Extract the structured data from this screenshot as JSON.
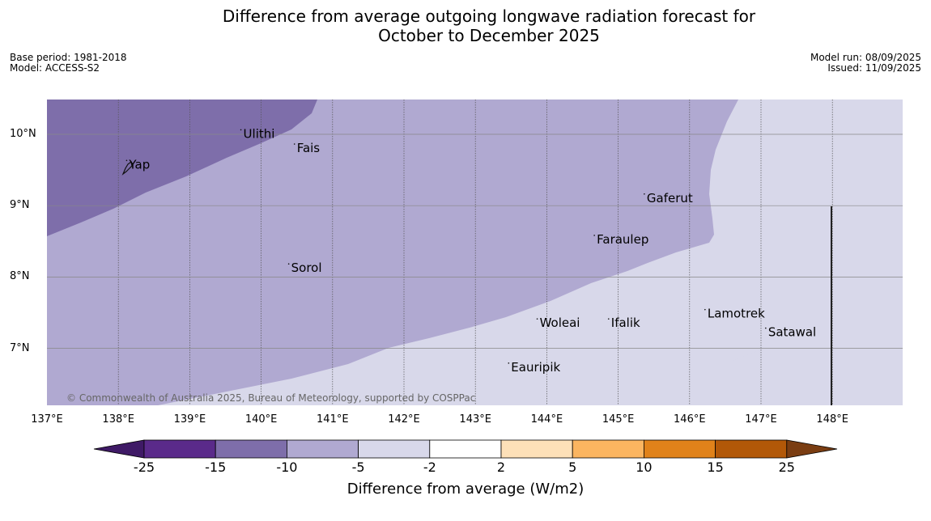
{
  "title": {
    "line1": "Difference from average outgoing longwave radiation forecast for",
    "line2": "October to December 2025"
  },
  "meta": {
    "base_period": "Base period: 1981-2018",
    "model": "Model: ACCESS-S2",
    "model_run": "Model run: 08/09/2025",
    "issued": "Issued: 11/09/2025"
  },
  "copyright": "© Commonwealth of Australia 2025, Bureau of Meteorology, supported by COSPPac",
  "map": {
    "lon_range": [
      137.0,
      149.0
    ],
    "lat_range": [
      6.2,
      10.5
    ],
    "x_ticks": [
      "137°E",
      "138°E",
      "139°E",
      "140°E",
      "141°E",
      "142°E",
      "143°E",
      "144°E",
      "145°E",
      "146°E",
      "147°E",
      "148°E"
    ],
    "y_ticks": [
      "10°N",
      "9°N",
      "8°N",
      "7°N"
    ],
    "places": [
      {
        "name": "Ulithi",
        "lon": 139.75,
        "lat": 9.95
      },
      {
        "name": "Fais",
        "lon": 140.5,
        "lat": 9.75
      },
      {
        "name": "Yap",
        "lon": 138.15,
        "lat": 9.52
      },
      {
        "name": "Gaferut",
        "lon": 145.4,
        "lat": 9.05
      },
      {
        "name": "Faraulep",
        "lon": 144.7,
        "lat": 8.47
      },
      {
        "name": "Sorol",
        "lon": 140.42,
        "lat": 8.07
      },
      {
        "name": "Woleai",
        "lon": 143.9,
        "lat": 7.3
      },
      {
        "name": "Ifalik",
        "lon": 144.9,
        "lat": 7.3
      },
      {
        "name": "Lamotrek",
        "lon": 146.25,
        "lat": 7.43
      },
      {
        "name": "Satawal",
        "lon": 147.1,
        "lat": 7.17
      },
      {
        "name": "Eauripik",
        "lon": 143.5,
        "lat": 6.68
      }
    ]
  },
  "legend": {
    "label": "Difference from average (W/m2)",
    "ticks": [
      "-25",
      "-15",
      "-10",
      "-5",
      "-2",
      "2",
      "5",
      "10",
      "15",
      "25"
    ],
    "colors": [
      "#3f1a66",
      "#5a2a8a",
      "#7e6eaa",
      "#b0a9d1",
      "#d8d8ea",
      "#ffffff",
      "#fde0b8",
      "#fbb560",
      "#e0821a",
      "#b25808",
      "#7a3d12"
    ]
  }
}
